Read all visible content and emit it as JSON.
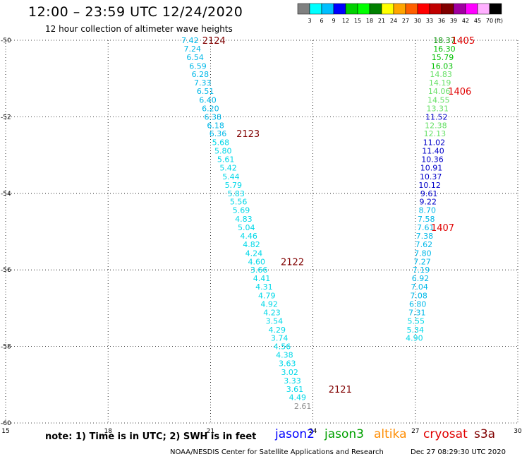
{
  "header": {
    "title": "12:00 – 23:59 UTC 12/24/2020",
    "subtitle": "12 hour collection of altimeter wave heights"
  },
  "colorbar": {
    "unit": "(ft)",
    "colors": [
      "#808080",
      "#00ffff",
      "#00bfff",
      "#0000ff",
      "#00d000",
      "#00ff00",
      "#008000",
      "#ffff00",
      "#ffa500",
      "#ff6000",
      "#ff0000",
      "#c00000",
      "#800000",
      "#a000a0",
      "#ff00ff",
      "#ffb0ff",
      "#000000"
    ],
    "labels": [
      "3",
      "6",
      "9",
      "12",
      "15",
      "18",
      "21",
      "24",
      "27",
      "30",
      "33",
      "36",
      "39",
      "42",
      "45",
      "70"
    ]
  },
  "chart_data": {
    "type": "scatter",
    "xlim": [
      15,
      30
    ],
    "ylim": [
      -60,
      -50
    ],
    "xticks": [
      "15",
      "18",
      "21",
      "24",
      "27",
      "30"
    ],
    "yticks": [
      "-50",
      "-52",
      "-54",
      "-56",
      "-58",
      "-60"
    ],
    "grid": true,
    "series": [
      {
        "name": "jason2",
        "values": [
          {
            "x": 20.4,
            "y": -50.0,
            "v": "7.42"
          },
          {
            "x": 20.47,
            "y": -50.22,
            "v": "7.24"
          },
          {
            "x": 20.55,
            "y": -50.44,
            "v": "6.54"
          },
          {
            "x": 20.63,
            "y": -50.67,
            "v": "6.59"
          },
          {
            "x": 20.7,
            "y": -50.89,
            "v": "6.28"
          },
          {
            "x": 20.77,
            "y": -51.11,
            "v": "7.33"
          },
          {
            "x": 20.85,
            "y": -51.33,
            "v": "6.51"
          },
          {
            "x": 20.92,
            "y": -51.56,
            "v": "6.40"
          },
          {
            "x": 21.0,
            "y": -51.78,
            "v": "6.20"
          },
          {
            "x": 21.07,
            "y": -52.0,
            "v": "6.38"
          },
          {
            "x": 21.15,
            "y": -52.22,
            "v": "6.18"
          },
          {
            "x": 21.22,
            "y": -52.44,
            "v": "6.36"
          },
          {
            "x": 21.3,
            "y": -52.67,
            "v": "5.68"
          },
          {
            "x": 21.37,
            "y": -52.89,
            "v": "5.80"
          },
          {
            "x": 21.45,
            "y": -53.11,
            "v": "5.61"
          },
          {
            "x": 21.52,
            "y": -53.33,
            "v": "5.42"
          },
          {
            "x": 21.6,
            "y": -53.56,
            "v": "5.44"
          },
          {
            "x": 21.67,
            "y": -53.78,
            "v": "5.79"
          },
          {
            "x": 21.75,
            "y": -54.0,
            "v": "5.83"
          },
          {
            "x": 21.82,
            "y": -54.22,
            "v": "5.56"
          },
          {
            "x": 21.9,
            "y": -54.44,
            "v": "5.69"
          },
          {
            "x": 21.97,
            "y": -54.67,
            "v": "4.83"
          },
          {
            "x": 22.05,
            "y": -54.89,
            "v": "5.04"
          },
          {
            "x": 22.12,
            "y": -55.11,
            "v": "4.46"
          },
          {
            "x": 22.2,
            "y": -55.33,
            "v": "4.82"
          },
          {
            "x": 22.27,
            "y": -55.56,
            "v": "4.24"
          },
          {
            "x": 22.35,
            "y": -55.78,
            "v": "4.60"
          },
          {
            "x": 22.42,
            "y": -56.0,
            "v": "3.66"
          },
          {
            "x": 22.5,
            "y": -56.22,
            "v": "4.41"
          },
          {
            "x": 22.57,
            "y": -56.44,
            "v": "4.31"
          },
          {
            "x": 22.65,
            "y": -56.67,
            "v": "4.79"
          },
          {
            "x": 22.72,
            "y": -56.89,
            "v": "4.92"
          },
          {
            "x": 22.8,
            "y": -57.11,
            "v": "4.23"
          },
          {
            "x": 22.87,
            "y": -57.33,
            "v": "3.54"
          },
          {
            "x": 22.95,
            "y": -57.56,
            "v": "4.29"
          },
          {
            "x": 23.02,
            "y": -57.78,
            "v": "3.74"
          },
          {
            "x": 23.1,
            "y": -58.0,
            "v": "4.56"
          },
          {
            "x": 23.17,
            "y": -58.22,
            "v": "4.38"
          },
          {
            "x": 23.25,
            "y": -58.44,
            "v": "3.63"
          },
          {
            "x": 23.32,
            "y": -58.67,
            "v": "3.02"
          },
          {
            "x": 23.4,
            "y": -58.89,
            "v": "3.33"
          },
          {
            "x": 23.47,
            "y": -59.11,
            "v": "3.61"
          },
          {
            "x": 23.55,
            "y": -59.33,
            "v": "4.49"
          },
          {
            "x": 23.7,
            "y": -59.56,
            "v": "2.61"
          }
        ]
      },
      {
        "name": "jason3",
        "values": [
          {
            "x": 27.85,
            "y": -50.0,
            "v": "18.37"
          },
          {
            "x": 27.85,
            "y": -50.22,
            "v": "16.30"
          },
          {
            "x": 27.8,
            "y": -50.44,
            "v": "15.79"
          },
          {
            "x": 27.78,
            "y": -50.67,
            "v": "16.03"
          },
          {
            "x": 27.75,
            "y": -50.89,
            "v": "14.83"
          },
          {
            "x": 27.72,
            "y": -51.11,
            "v": "14.19"
          },
          {
            "x": 27.7,
            "y": -51.33,
            "v": "14.06"
          },
          {
            "x": 27.68,
            "y": -51.56,
            "v": "14.55"
          },
          {
            "x": 27.65,
            "y": -51.78,
            "v": "13.31"
          },
          {
            "x": 27.62,
            "y": -52.0,
            "v": "11.52"
          },
          {
            "x": 27.6,
            "y": -52.22,
            "v": "12.38"
          },
          {
            "x": 27.57,
            "y": -52.44,
            "v": "12.13"
          },
          {
            "x": 27.55,
            "y": -52.67,
            "v": "11.02"
          },
          {
            "x": 27.52,
            "y": -52.89,
            "v": "11.40"
          },
          {
            "x": 27.5,
            "y": -53.11,
            "v": "10.36"
          },
          {
            "x": 27.47,
            "y": -53.33,
            "v": "10.91"
          },
          {
            "x": 27.45,
            "y": -53.56,
            "v": "10.37"
          },
          {
            "x": 27.42,
            "y": -53.78,
            "v": "10.12"
          },
          {
            "x": 27.4,
            "y": -54.0,
            "v": "9.61"
          },
          {
            "x": 27.37,
            "y": -54.22,
            "v": "9.22"
          },
          {
            "x": 27.35,
            "y": -54.44,
            "v": "8.70"
          },
          {
            "x": 27.32,
            "y": -54.67,
            "v": "7.58"
          },
          {
            "x": 27.3,
            "y": -54.89,
            "v": "7.61"
          },
          {
            "x": 27.27,
            "y": -55.11,
            "v": "7.38"
          },
          {
            "x": 27.25,
            "y": -55.33,
            "v": "7.62"
          },
          {
            "x": 27.22,
            "y": -55.56,
            "v": "7.80"
          },
          {
            "x": 27.2,
            "y": -55.78,
            "v": "7.27"
          },
          {
            "x": 27.17,
            "y": -56.0,
            "v": "7.19"
          },
          {
            "x": 27.15,
            "y": -56.22,
            "v": "6.92"
          },
          {
            "x": 27.12,
            "y": -56.44,
            "v": "7.04"
          },
          {
            "x": 27.1,
            "y": -56.67,
            "v": "7.08"
          },
          {
            "x": 27.07,
            "y": -56.89,
            "v": "6.80"
          },
          {
            "x": 27.05,
            "y": -57.11,
            "v": "7.31"
          },
          {
            "x": 27.02,
            "y": -57.33,
            "v": "5.55"
          },
          {
            "x": 27.0,
            "y": -57.56,
            "v": "5.34"
          },
          {
            "x": 26.97,
            "y": -57.78,
            "v": "4.90"
          }
        ]
      }
    ],
    "annotations": [
      {
        "text": "2124",
        "x": 21.1,
        "y": -50.0,
        "color": "#800000"
      },
      {
        "text": "2123",
        "x": 22.1,
        "y": -52.44,
        "color": "#800000"
      },
      {
        "text": "2122",
        "x": 23.4,
        "y": -55.78,
        "color": "#800000"
      },
      {
        "text": "2121",
        "x": 24.8,
        "y": -59.11,
        "color": "#800000"
      },
      {
        "text": "1405",
        "x": 28.4,
        "y": -50.0,
        "color": "#e00000"
      },
      {
        "text": "1406",
        "x": 28.3,
        "y": -51.33,
        "color": "#e00000"
      },
      {
        "text": "1407",
        "x": 27.8,
        "y": -54.89,
        "color": "#e00000"
      }
    ]
  },
  "note": "note: 1) Time is in UTC; 2) SWH is in feet",
  "satellites": [
    {
      "name": "jason2",
      "color": "#0000ff"
    },
    {
      "name": "jason3",
      "color": "#00a000"
    },
    {
      "name": "altika",
      "color": "#ff8c00"
    },
    {
      "name": "cryosat",
      "color": "#e00000"
    },
    {
      "name": "s3a",
      "color": "#800000"
    }
  ],
  "footer": {
    "credit": "NOAA/NESDIS Center for Satellite Applications and Research",
    "timestamp": "Dec 27 08:29:30 UTC 2020"
  }
}
